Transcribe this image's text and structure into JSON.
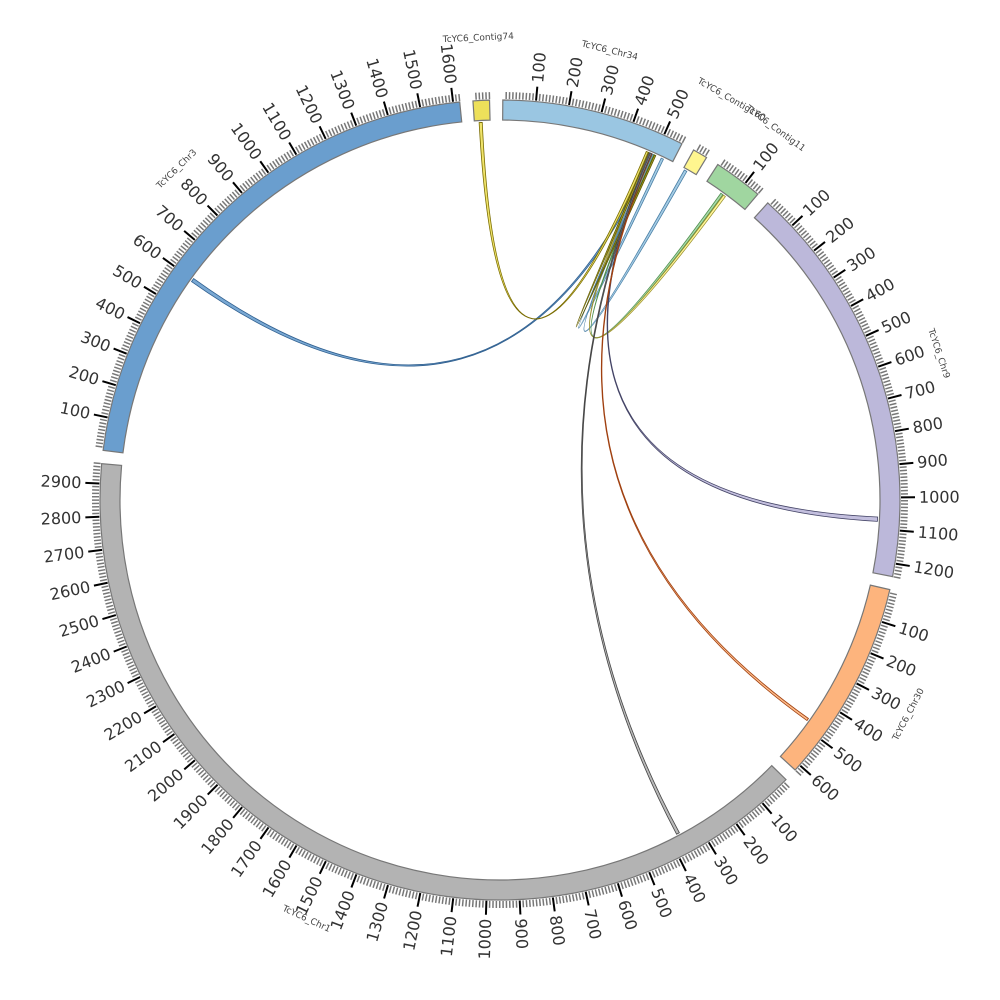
{
  "chart_data": {
    "type": "chord",
    "major_tick_interval": 100,
    "minor_tick_interval": 10,
    "chromosomes": [
      {
        "name": "TcYC6_Chr34",
        "length": 560,
        "color": "#9ac6e2"
      },
      {
        "name": "TcYC6_Contig160",
        "length": 45,
        "color": "#fff68f"
      },
      {
        "name": "TcYC6_Contig11",
        "length": 150,
        "color": "#a0d6a0"
      },
      {
        "name": "TcYC6_Chr9",
        "length": 1240,
        "color": "#bcb8da"
      },
      {
        "name": "TcYC6_Chr30",
        "length": 620,
        "color": "#fdb47d"
      },
      {
        "name": "TcYC6_Chr1",
        "length": 2960,
        "color": "#b3b3b3"
      },
      {
        "name": "TcYC6_Chr3",
        "length": 1620,
        "color": "#6a9ece"
      },
      {
        "name": "TcYC6_Contig74",
        "length": 50,
        "color": "#ede05a"
      }
    ],
    "links": [
      {
        "source": "TcYC6_Chr3",
        "source_range": [
          592,
          604
        ],
        "target": "TcYC6_Chr34",
        "target_range": [
          485,
          492
        ],
        "color": "#6a9ece",
        "stroke": "#2f5f8f"
      },
      {
        "source": "TcYC6_Contig74",
        "source_range": [
          15,
          25
        ],
        "target": "TcYC6_Chr34",
        "target_range": [
          470,
          478
        ],
        "color": "#ede05a",
        "stroke": "#7a6c00"
      },
      {
        "source": "TcYC6_Chr34",
        "source_range": [
          522,
          530
        ],
        "target": "TcYC6_Chr34",
        "target_range": [
          488,
          492
        ],
        "color": "#9ac6e2",
        "stroke": "#4a7fa5"
      },
      {
        "source": "TcYC6_Contig160",
        "source_range": [
          5,
          14
        ],
        "target": "TcYC6_Chr34",
        "target_range": [
          492,
          496
        ],
        "color": "#9ac6e2",
        "stroke": "#4a7fa5"
      },
      {
        "source": "TcYC6_Contig11",
        "source_range": [
          58,
          66
        ],
        "target": "TcYC6_Chr34",
        "target_range": [
          496,
          500
        ],
        "color": "#a0d6a0",
        "stroke": "#4f8f4f"
      },
      {
        "source": "TcYC6_Contig11",
        "source_range": [
          68,
          76
        ],
        "target": "TcYC6_Chr34",
        "target_range": [
          476,
          481
        ],
        "color": "#fff68f",
        "stroke": "#9a9030"
      },
      {
        "source": "TcYC6_Chr34",
        "source_range": [
          478,
          484
        ],
        "target": "TcYC6_Chr34",
        "target_range": [
          498,
          503
        ],
        "color": "#a8a020",
        "stroke": "#5e5800"
      },
      {
        "source": "TcYC6_Chr9",
        "source_range": [
          1062,
          1076
        ],
        "target": "TcYC6_Chr34",
        "target_range": [
          481,
          485
        ],
        "color": "#bcb8da",
        "stroke": "#444466"
      },
      {
        "source": "TcYC6_Chr30",
        "source_range": [
          470,
          478
        ],
        "target": "TcYC6_Chr34",
        "target_range": [
          487,
          490
        ],
        "color": "#fdb47d",
        "stroke": "#a04010"
      },
      {
        "source": "TcYC6_Chr1",
        "source_range": [
          364,
          374
        ],
        "target": "TcYC6_Chr34",
        "target_range": [
          484,
          488
        ],
        "color": "#b3b3b3",
        "stroke": "#444444"
      }
    ]
  }
}
